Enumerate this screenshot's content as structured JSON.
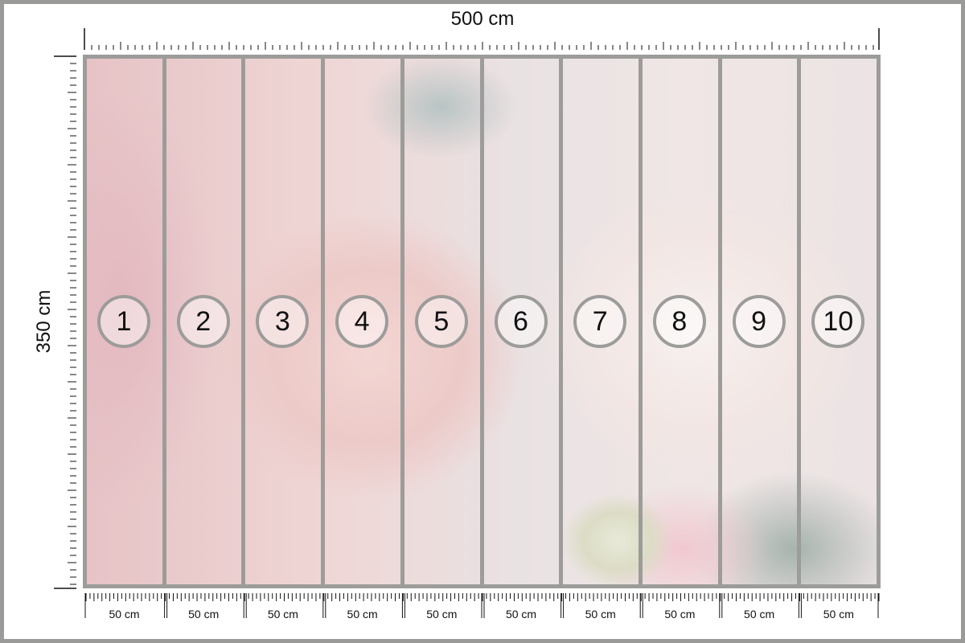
{
  "dimensions": {
    "width_label": "500 cm",
    "height_label": "350 cm"
  },
  "panels": [
    {
      "number": "1",
      "width_label": "50 cm"
    },
    {
      "number": "2",
      "width_label": "50 cm"
    },
    {
      "number": "3",
      "width_label": "50 cm"
    },
    {
      "number": "4",
      "width_label": "50 cm"
    },
    {
      "number": "5",
      "width_label": "50 cm"
    },
    {
      "number": "6",
      "width_label": "50 cm"
    },
    {
      "number": "7",
      "width_label": "50 cm"
    },
    {
      "number": "8",
      "width_label": "50 cm"
    },
    {
      "number": "9",
      "width_label": "50 cm"
    },
    {
      "number": "10",
      "width_label": "50 cm"
    }
  ],
  "colors": {
    "frame": "#9a9a98",
    "divider": "#9c9c9a",
    "ink": "#111111"
  },
  "image_subject": "pink-peonies-photo"
}
